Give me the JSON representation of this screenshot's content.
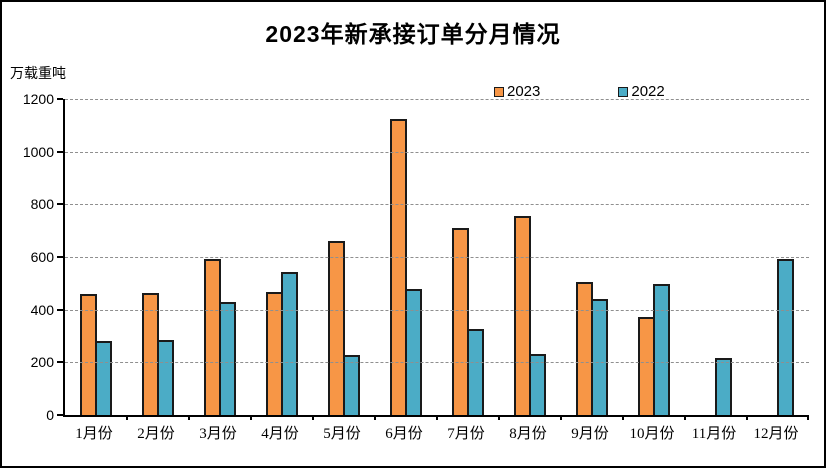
{
  "chart_data": {
    "type": "bar",
    "title": "2023年新承接订单分月情况",
    "ylabel": "万载重吨",
    "xlabel": "",
    "categories": [
      "1月份",
      "2月份",
      "3月份",
      "4月份",
      "5月份",
      "6月份",
      "7月份",
      "8月份",
      "9月份",
      "10月份",
      "11月份",
      "12月份"
    ],
    "series": [
      {
        "name": "2023",
        "color": "#F79646",
        "values": [
          461,
          465,
          593,
          466,
          660,
          1125,
          710,
          755,
          505,
          372,
          null,
          null
        ]
      },
      {
        "name": "2022",
        "color": "#4BACC6",
        "values": [
          280,
          283,
          429,
          543,
          228,
          477,
          325,
          231,
          440,
          497,
          218,
          593
        ]
      }
    ],
    "ylim": [
      0,
      1200
    ],
    "yticks": [
      0,
      200,
      400,
      600,
      800,
      1000,
      1200
    ],
    "grid": "horizontal-dashed",
    "legend_position": "top-center",
    "colors": {
      "background": "#FFFFFF",
      "frame_border": "#000000",
      "axis": "#000000",
      "bar_border": "#1A1A1A",
      "gridline": "#8F8F8F",
      "text": "#000000"
    }
  }
}
